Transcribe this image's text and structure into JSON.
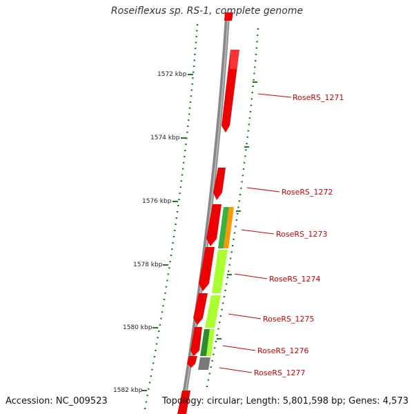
{
  "title": "Roseiflexus sp. RS-1, complete genome",
  "footer": {
    "accession": "Accession: NC_009523",
    "topology": "Topology: circular; Length: 5,801,598 bp; Genes: 4,573"
  },
  "ticks": [
    {
      "label": "1572 kbp",
      "kbp": 1572
    },
    {
      "label": "1574 kbp",
      "kbp": 1574
    },
    {
      "label": "1576 kbp",
      "kbp": 1576
    },
    {
      "label": "1578 kbp",
      "kbp": 1578
    },
    {
      "label": "1580 kbp",
      "kbp": 1580
    },
    {
      "label": "1582 kbp",
      "kbp": 1582
    }
  ],
  "genes": [
    {
      "name": "RoseRS_1271",
      "label_color": "#cc0000"
    },
    {
      "name": "RoseRS_1272",
      "label_color": "#cc0000"
    },
    {
      "name": "RoseRS_1273",
      "label_color": "#cc0000"
    },
    {
      "name": "RoseRS_1274",
      "label_color": "#cc0000"
    },
    {
      "name": "RoseRS_1275",
      "label_color": "#cc0000"
    },
    {
      "name": "RoseRS_1276",
      "label_color": "#cc0000"
    },
    {
      "name": "RoseRS_1277",
      "label_color": "#cc0000"
    }
  ],
  "colors": {
    "backbone": "#8a8a8a",
    "gene_red": "#ee0000",
    "gene_green": "#3bb23b",
    "gene_lime": "#aaff33",
    "gene_orange": "#ff9900",
    "gene_gray": "#7a7a7a",
    "gene_darkgreen": "#2e8b2e",
    "tick": "#1a7a1a"
  }
}
